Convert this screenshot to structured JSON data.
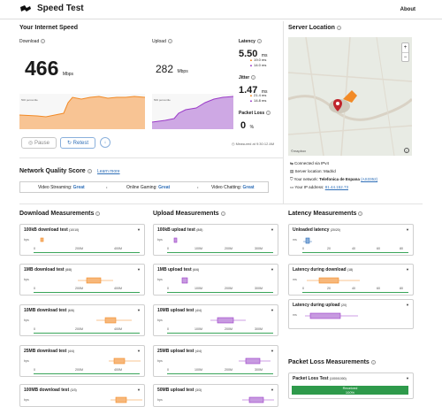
{
  "app": {
    "title": "Speed Test",
    "about": "About"
  },
  "speed": {
    "heading": "Your Internet Speed",
    "download_label": "Download",
    "upload_label": "Upload",
    "download_value": "466",
    "upload_value": "282",
    "unit": "Mbps",
    "latency_label": "Latency",
    "latency_value": "5.50",
    "latency_unit": "ms",
    "latency_up": "19.0",
    "latency_down": "14.0",
    "jitter_label": "Jitter",
    "jitter_value": "1.47",
    "jitter_unit": "ms",
    "jitter_up": "21.4",
    "jitter_down": "14.8",
    "packet_loss_label": "Packet Loss",
    "packet_loss_value": "0",
    "packet_loss_unit": "%",
    "measured_at": "Measured at 9:30:12 AM",
    "pause_label": "Pause",
    "retest_label": "Retest",
    "chart_axis_label": "500 percentile"
  },
  "quality": {
    "heading": "Network Quality Score",
    "learn_more": "Learn more",
    "items": [
      {
        "label": "Video Streaming:",
        "value": "Great"
      },
      {
        "label": "Online Gaming:",
        "value": "Great"
      },
      {
        "label": "Video Chatting:",
        "value": "Great"
      }
    ]
  },
  "server": {
    "heading": "Server Location",
    "map_attribution": "©mapbox",
    "zoom_in": "+",
    "zoom_out": "−",
    "connected": "Connected via IPv4",
    "location_label": "Server location:",
    "location_value": "Madrid",
    "network_label": "Your network:",
    "network_value": "Telefonica de Espana",
    "network_as": "(AS3352)",
    "ip_label": "Your IP address:",
    "ip_value": "81.44.152.73"
  },
  "download": {
    "heading": "Download Measurements",
    "cards": [
      {
        "title": "100kB download test",
        "count": "(10/10)",
        "ticks": [
          "0",
          "200M",
          "400M"
        ]
      },
      {
        "title": "1MB download test",
        "count": "(8/8)",
        "ticks": [
          "0",
          "200M",
          "400M"
        ]
      },
      {
        "title": "10MB download test",
        "count": "(6/6)",
        "ticks": [
          "0",
          "200M",
          "400M"
        ]
      },
      {
        "title": "25MB download test",
        "count": "(4/4)",
        "ticks": [
          "0",
          "200M",
          "400M"
        ]
      },
      {
        "title": "100MB download test",
        "count": "(3/3)",
        "ticks": []
      }
    ]
  },
  "upload": {
    "heading": "Upload Measurements",
    "cards": [
      {
        "title": "100kB upload test",
        "count": "(8/8)",
        "ticks": [
          "0",
          "100M",
          "200M",
          "300M"
        ]
      },
      {
        "title": "1MB upload test",
        "count": "(6/6)",
        "ticks": [
          "0",
          "100M",
          "200M",
          "300M"
        ]
      },
      {
        "title": "10MB upload test",
        "count": "(4/4)",
        "ticks": [
          "0",
          "100M",
          "200M",
          "300M"
        ]
      },
      {
        "title": "25MB upload test",
        "count": "(4/4)",
        "ticks": [
          "0",
          "100M",
          "200M",
          "300M"
        ]
      },
      {
        "title": "50MB upload test",
        "count": "(3/3)",
        "ticks": []
      }
    ]
  },
  "latency": {
    "heading": "Latency Measurements",
    "cards": [
      {
        "title": "Unloaded latency",
        "count": "(20/20)",
        "ticks": [
          "0",
          "20",
          "40",
          "60",
          "80"
        ]
      },
      {
        "title": "Latency during download",
        "count": "(18)",
        "ticks": [
          "0",
          "20",
          "40",
          "60",
          "80"
        ]
      },
      {
        "title": "Latency during upload",
        "count": "(20)",
        "ticks": []
      }
    ],
    "unit": "ms"
  },
  "packet_loss": {
    "heading": "Packet Loss Measurements",
    "card_title": "Packet Loss Test",
    "card_count": "(1000/1000)",
    "received_label": "Received",
    "received_pct": "100%",
    "received_fraction": 1.0
  },
  "bps_label": "bps",
  "colors": {
    "download": "#f28a26",
    "upload": "#9b3bc8",
    "latency": "#2f6fb8",
    "good": "#3aa55a",
    "link": "#2f6fb8"
  }
}
